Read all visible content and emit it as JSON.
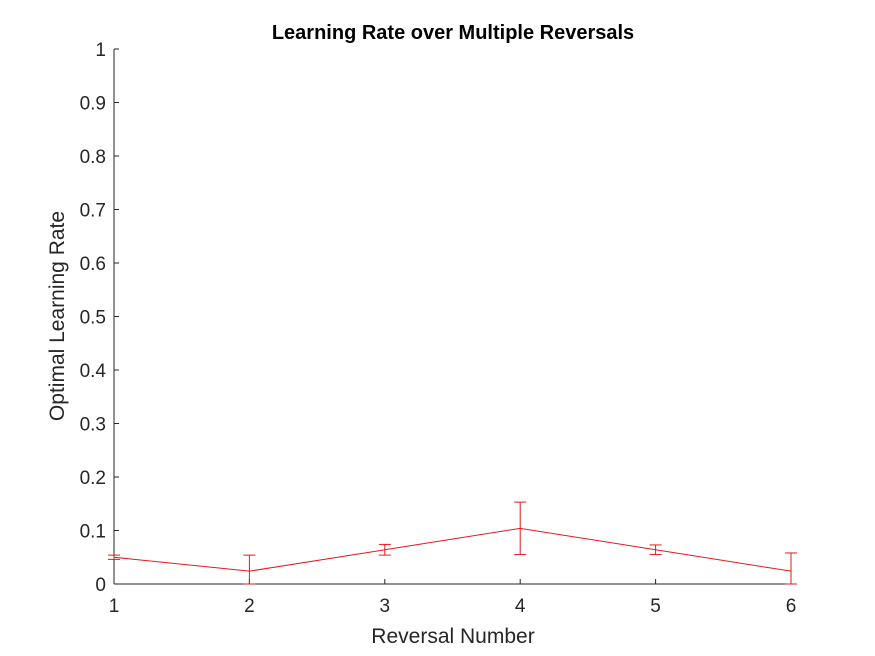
{
  "chart_data": {
    "type": "line",
    "title": "Learning Rate over Multiple Reversals",
    "xlabel": "Reversal Number",
    "ylabel": "Optimal Learning Rate",
    "xlim": [
      1,
      6
    ],
    "ylim": [
      0,
      1
    ],
    "xticks": [
      "1",
      "2",
      "3",
      "4",
      "5",
      "6"
    ],
    "yticks": [
      "0",
      "0.1",
      "0.2",
      "0.3",
      "0.4",
      "0.5",
      "0.6",
      "0.7",
      "0.8",
      "0.9",
      "1"
    ],
    "grid": false,
    "series_color": "#e31a1c",
    "series": [
      {
        "x": [
          1,
          2,
          3,
          4,
          5,
          6
        ],
        "values": [
          0.05,
          0.024,
          0.064,
          0.104,
          0.064,
          0.024
        ],
        "error": [
          0.004,
          0.03,
          0.01,
          0.049,
          0.009,
          0.034
        ]
      }
    ]
  }
}
